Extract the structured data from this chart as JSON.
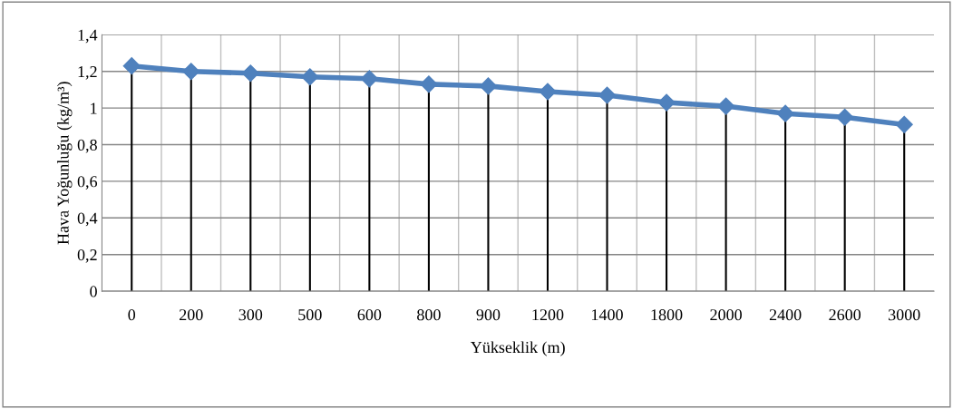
{
  "chart_data": {
    "type": "line",
    "xlabel": "Yükseklik (m)",
    "ylabel": "Hava Yoğunluğu (kg/m³)",
    "categories": [
      "0",
      "200",
      "300",
      "500",
      "600",
      "800",
      "900",
      "1200",
      "1400",
      "1800",
      "2000",
      "2400",
      "2600",
      "3000"
    ],
    "series": [
      {
        "color": "#4f81bd",
        "values": [
          1.23,
          1.2,
          1.19,
          1.17,
          1.16,
          1.13,
          1.12,
          1.09,
          1.07,
          1.03,
          1.01,
          0.97,
          0.95,
          0.91
        ]
      },
      {
        "type": "lollipop",
        "color": "#4f81bd",
        "marker": "diamond",
        "values": [
          1.23,
          1.2,
          1.19,
          1.17,
          1.16,
          1.13,
          1.12,
          1.09,
          1.07,
          1.03,
          1.01,
          0.97,
          0.95,
          0.91
        ]
      }
    ],
    "ylim": [
      0,
      1.4
    ],
    "yticks": [
      0,
      {
        "value": 0.2,
        "label": "0,2"
      },
      {
        "value": 0.4,
        "label": "0,4"
      },
      {
        "value": 0.6,
        "label": "0,6"
      },
      {
        "value": 0.8,
        "label": "0,8"
      },
      1,
      {
        "value": 1.2,
        "label": "1,2"
      },
      {
        "value": 1.4,
        "label": "1,4"
      }
    ],
    "grid": true,
    "legend": false
  }
}
